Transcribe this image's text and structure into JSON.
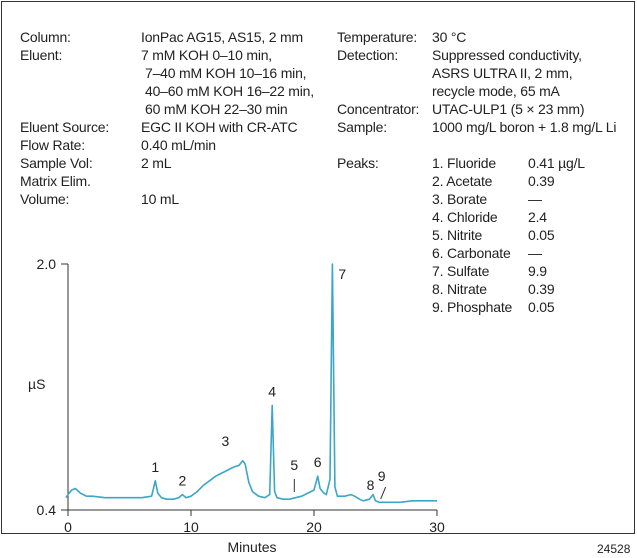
{
  "conditions": {
    "column_label": "Column:",
    "column": "IonPac AG15, AS15, 2 mm",
    "eluent_label": "Eluent:",
    "eluent_lines": [
      "7 mM KOH 0–10 min,",
      "7–40 mM KOH 10–16 min,",
      "40–60 mM KOH 16–22 min,",
      "60 mM KOH 22–30 min"
    ],
    "eluent_source_label": "Eluent Source:",
    "eluent_source": "EGC II KOH with CR-ATC",
    "flow_rate_label": "Flow Rate:",
    "flow_rate": "0.40 mL/min",
    "sample_vol_label": "Sample Vol:",
    "sample_vol": "2 mL",
    "matrix_elim_label": "Matrix Elim.",
    "volume_label": "Volume:",
    "volume": "10 mL",
    "temperature_label": "Temperature:",
    "temperature": "30 °C",
    "detection_label": "Detection:",
    "detection_lines": [
      "Suppressed conductivity,",
      "ASRS ULTRA  II, 2 mm,",
      "recycle mode, 65 mA"
    ],
    "concentrator_label": "Concentrator:",
    "concentrator": "UTAC-ULP1 (5 × 23 mm)",
    "sample_label": "Sample:",
    "sample": "1000 mg/L boron + 1.8 mg/L Li",
    "peaks_label": "Peaks:"
  },
  "peaks": [
    {
      "name": "1. Fluoride",
      "amount": "0.41 µg/L"
    },
    {
      "name": "2. Acetate",
      "amount": "0.39"
    },
    {
      "name": "3. Borate",
      "amount": "—"
    },
    {
      "name": "4. Chloride",
      "amount": "2.4"
    },
    {
      "name": "5. Nitrite",
      "amount": "0.05"
    },
    {
      "name": "6. Carbonate",
      "amount": "—"
    },
    {
      "name": "7. Sulfate",
      "amount": "9.9"
    },
    {
      "name": "8. Nitrate",
      "amount": "0.39"
    },
    {
      "name": "9. Phosphate",
      "amount": "0.05"
    }
  ],
  "figure_number": "24528",
  "chart_data": {
    "type": "line",
    "xlabel": "Minutes",
    "ylabel": "µS",
    "xlim": [
      0,
      30
    ],
    "ylim": [
      0.4,
      2.0
    ],
    "x_ticks": [
      0,
      10,
      20,
      30
    ],
    "y_tick_labels": [
      "0.4",
      "2.0"
    ],
    "line_color": "#3aa6c8",
    "series": [
      {
        "x": [
          -0.3,
          0,
          0.3,
          0.6,
          1.0,
          1.5,
          2.0,
          3.0,
          4.0,
          5.0,
          6.0,
          6.8,
          7.1,
          7.3,
          7.6,
          8.0,
          8.6,
          9.0,
          9.3,
          9.6,
          10.0,
          10.5,
          11.0,
          11.5,
          12.0,
          12.5,
          13.0,
          13.5,
          13.9,
          14.2,
          14.4,
          14.7,
          15.0,
          15.5,
          16.0,
          16.4,
          16.6,
          16.8,
          17.0,
          17.5,
          18.0,
          18.5,
          19.0,
          19.5,
          20.0,
          20.3,
          20.5,
          20.8,
          21.0,
          21.3,
          21.5,
          21.7,
          21.9,
          22.2,
          22.5,
          23.0,
          23.3,
          23.7,
          24.0,
          24.5,
          24.8,
          25.0,
          25.3,
          25.6,
          26.0,
          27.0,
          28.0,
          29.0,
          30.0
        ],
        "y": [
          0.48,
          0.5,
          0.53,
          0.54,
          0.51,
          0.49,
          0.49,
          0.48,
          0.48,
          0.48,
          0.48,
          0.49,
          0.59,
          0.51,
          0.48,
          0.47,
          0.47,
          0.48,
          0.5,
          0.48,
          0.49,
          0.52,
          0.56,
          0.59,
          0.62,
          0.64,
          0.66,
          0.68,
          0.69,
          0.72,
          0.7,
          0.58,
          0.52,
          0.49,
          0.48,
          0.5,
          1.08,
          0.52,
          0.48,
          0.47,
          0.47,
          0.48,
          0.49,
          0.51,
          0.53,
          0.62,
          0.54,
          0.51,
          0.5,
          0.6,
          2.0,
          0.55,
          0.49,
          0.49,
          0.49,
          0.5,
          0.49,
          0.47,
          0.46,
          0.47,
          0.5,
          0.46,
          0.45,
          0.45,
          0.45,
          0.45,
          0.46,
          0.46,
          0.46
        ]
      }
    ],
    "peak_annotations": [
      {
        "label": "1",
        "x": 7.1
      },
      {
        "label": "2",
        "x": 9.3
      },
      {
        "label": "3",
        "x": 12.8
      },
      {
        "label": "4",
        "x": 16.6
      },
      {
        "label": "5",
        "x": 18.4
      },
      {
        "label": "6",
        "x": 20.3
      },
      {
        "label": "7",
        "x": 22.3
      },
      {
        "label": "8",
        "x": 24.6
      },
      {
        "label": "9",
        "x": 25.5
      }
    ]
  }
}
